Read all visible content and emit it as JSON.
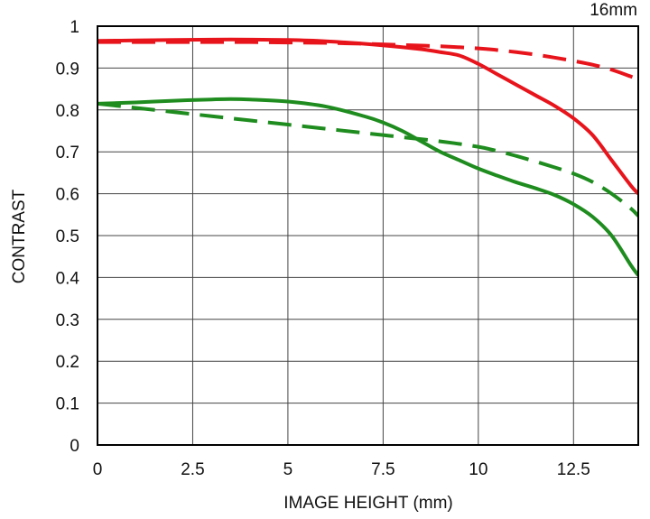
{
  "chart_data": {
    "type": "line",
    "title": "",
    "corner_label": "16mm",
    "xlabel": "IMAGE HEIGHT (mm)",
    "ylabel": "CONTRAST",
    "xlim": [
      0,
      14.2
    ],
    "ylim": [
      0,
      1
    ],
    "xticks": [
      0,
      2.5,
      5,
      7.5,
      10,
      12.5
    ],
    "xtick_labels": [
      "0",
      "2.5",
      "5",
      "7.5",
      "10",
      "12.5"
    ],
    "yticks": [
      0,
      0.1,
      0.2,
      0.3,
      0.4,
      0.5,
      0.6,
      0.7,
      0.8,
      0.9,
      1
    ],
    "ytick_labels": [
      "0",
      "0.1",
      "0.2",
      "0.3",
      "0.4",
      "0.5",
      "0.6",
      "0.7",
      "0.8",
      "0.9",
      "1"
    ],
    "grid": true,
    "legend": "none",
    "series": [
      {
        "color": "#e8141c",
        "dash": "solid",
        "x": [
          0,
          1,
          2,
          3,
          4,
          5,
          6,
          7,
          8,
          8.5,
          9,
          9.5,
          10,
          10.5,
          11,
          11.5,
          12,
          12.5,
          13,
          13.5,
          14,
          14.2
        ],
        "y": [
          0.965,
          0.966,
          0.967,
          0.968,
          0.968,
          0.967,
          0.964,
          0.958,
          0.95,
          0.945,
          0.938,
          0.93,
          0.91,
          0.885,
          0.86,
          0.835,
          0.81,
          0.78,
          0.74,
          0.68,
          0.62,
          0.6
        ]
      },
      {
        "color": "#e8141c",
        "dash": "dashed",
        "x": [
          0,
          1,
          2,
          3,
          4,
          5,
          6,
          7,
          8,
          9,
          10,
          10.5,
          11,
          11.5,
          12,
          12.5,
          13,
          13.5,
          14,
          14.2
        ],
        "y": [
          0.962,
          0.962,
          0.962,
          0.962,
          0.962,
          0.961,
          0.96,
          0.958,
          0.955,
          0.952,
          0.947,
          0.943,
          0.938,
          0.932,
          0.925,
          0.917,
          0.908,
          0.896,
          0.88,
          0.873
        ]
      },
      {
        "color": "#1e8c1e",
        "dash": "solid",
        "x": [
          0,
          1,
          2,
          3,
          3.5,
          4,
          5,
          6,
          7,
          7.5,
          8,
          8.5,
          9,
          9.5,
          10,
          10.5,
          11,
          11.5,
          12,
          12.5,
          13,
          13.5,
          14,
          14.2
        ],
        "y": [
          0.815,
          0.818,
          0.822,
          0.825,
          0.826,
          0.825,
          0.82,
          0.808,
          0.785,
          0.77,
          0.75,
          0.725,
          0.7,
          0.68,
          0.66,
          0.643,
          0.627,
          0.613,
          0.597,
          0.575,
          0.545,
          0.5,
          0.43,
          0.405
        ]
      },
      {
        "color": "#1e8c1e",
        "dash": "dashed",
        "x": [
          0,
          1,
          2,
          3,
          4,
          5,
          6,
          7,
          7.5,
          8,
          9,
          10,
          10.5,
          11,
          11.5,
          12,
          12.5,
          13,
          13.5,
          14,
          14.2
        ],
        "y": [
          0.815,
          0.805,
          0.795,
          0.785,
          0.775,
          0.765,
          0.755,
          0.745,
          0.74,
          0.735,
          0.725,
          0.712,
          0.702,
          0.69,
          0.677,
          0.663,
          0.648,
          0.628,
          0.6,
          0.565,
          0.547
        ]
      }
    ]
  }
}
